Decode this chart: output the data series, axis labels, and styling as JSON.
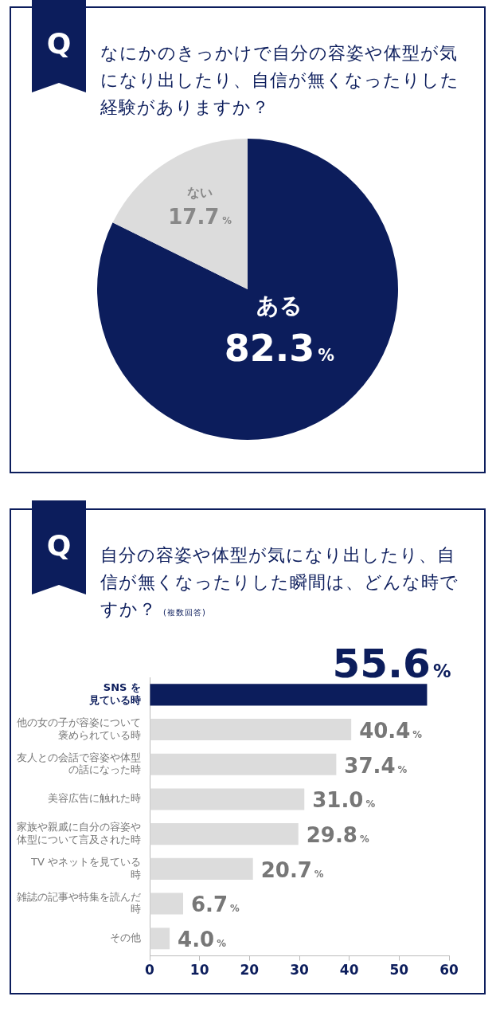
{
  "chart_data": [
    {
      "type": "pie",
      "title": "なにかのきっかけで自分の容姿や体型が気になり出したり、自信が無くなったりした経験がありますか？",
      "annotations": [
        "Q"
      ],
      "categories": [
        "ある",
        "ない"
      ],
      "values": [
        82.3,
        17.7
      ],
      "colors": [
        "#0c1d5c",
        "#dcdcdc"
      ],
      "value_labels": [
        "82.3%",
        "17.7%"
      ],
      "legend": false
    },
    {
      "type": "bar",
      "orientation": "horizontal",
      "title": "自分の容姿や体型が気になり出したり、自信が無くなったりした瞬間は、どんな時ですか？",
      "subtitle": "(複数回答)",
      "annotations": [
        "Q"
      ],
      "categories": [
        "SNS を見ている時",
        "他の女の子が容姿について褒められている時",
        "友人との会話で容姿や体型の話になった時",
        "美容広告に触れた時",
        "家族や親戚に自分の容姿や体型について言及された時",
        "TV やネットを見ている時",
        "雑誌の記事や特集を読んだ時",
        "その他"
      ],
      "values": [
        55.6,
        40.4,
        37.4,
        31.0,
        29.8,
        20.7,
        6.7,
        4.0
      ],
      "colors": [
        "#0c1d5c",
        "#dcdcdc",
        "#dcdcdc",
        "#dcdcdc",
        "#dcdcdc",
        "#dcdcdc",
        "#dcdcdc",
        "#dcdcdc"
      ],
      "value_labels": [
        "55.6%",
        "40.4%",
        "37.4%",
        "31.0%",
        "29.8%",
        "20.7%",
        "6.7%",
        "4.0%"
      ],
      "xlim": [
        0,
        60
      ],
      "xticks": [
        0,
        10,
        20,
        30,
        40,
        50,
        60
      ],
      "grid": false,
      "legend": false
    }
  ]
}
